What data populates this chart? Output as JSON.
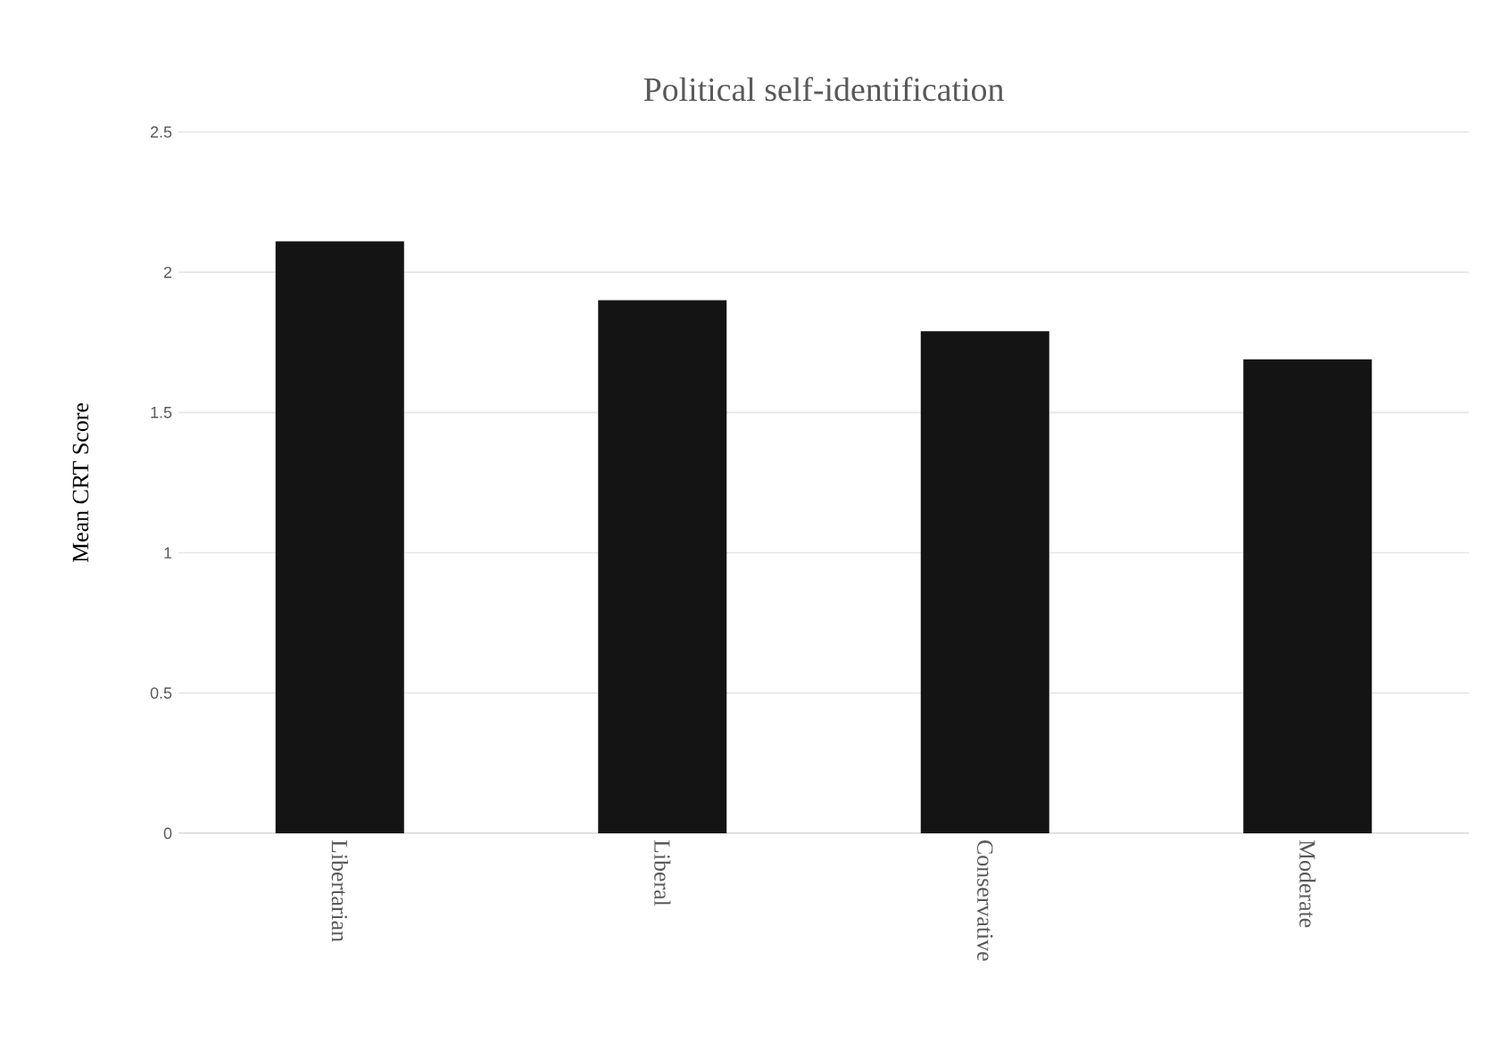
{
  "chart_data": {
    "type": "bar",
    "title": "Political self-identification",
    "ylabel": "Mean CRT Score",
    "categories": [
      "Libertarian",
      "Liberal",
      "Conservative",
      "Moderate"
    ],
    "values": [
      2.11,
      1.9,
      1.79,
      1.69
    ],
    "color": "#141414",
    "ylim": [
      0,
      2.5
    ],
    "yticks": [
      0,
      0.5,
      1,
      1.5,
      2,
      2.5
    ],
    "grid": "y"
  }
}
